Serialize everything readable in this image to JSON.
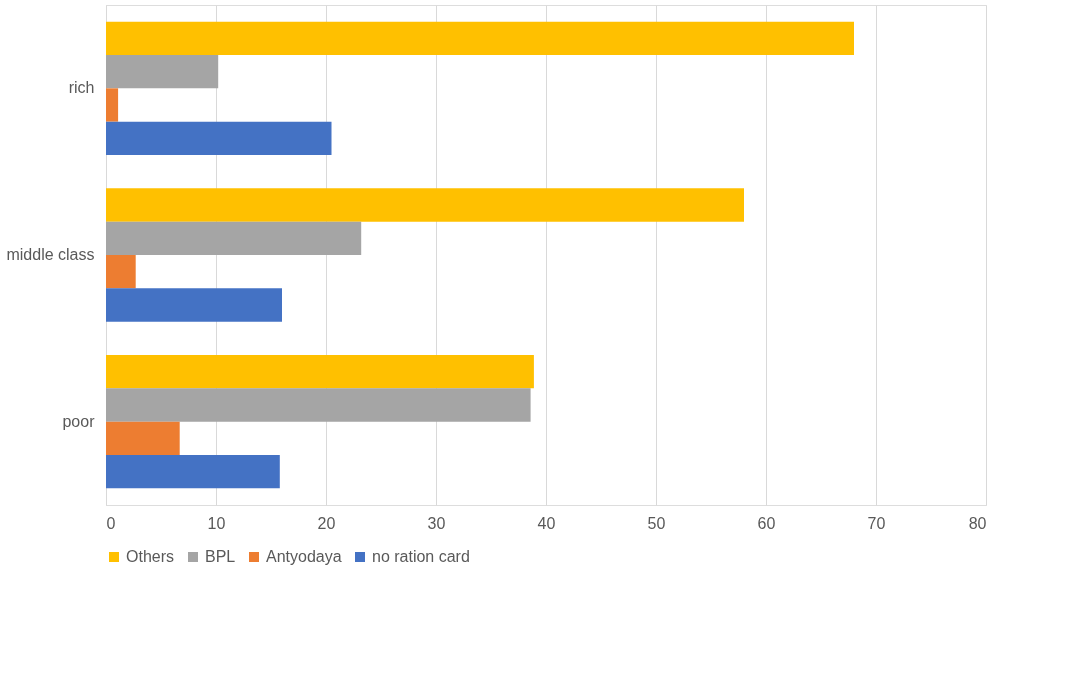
{
  "chart_data": {
    "type": "bar",
    "orientation": "horizontal",
    "categories": [
      "rich",
      "middle class",
      "poor"
    ],
    "series": [
      {
        "name": "Others",
        "color": "#ffc000",
        "values": [
          68,
          58,
          38.9
        ]
      },
      {
        "name": "BPL",
        "color": "#a5a5a5",
        "values": [
          10.2,
          23.2,
          38.6
        ]
      },
      {
        "name": "Antyodaya",
        "color": "#ed7d31",
        "values": [
          1.1,
          2.7,
          6.7
        ]
      },
      {
        "name": "no ration card",
        "color": "#4472c4",
        "values": [
          20.5,
          16,
          15.8
        ]
      }
    ],
    "xlim": [
      0,
      80
    ],
    "xticks": [
      0,
      10,
      20,
      30,
      40,
      50,
      60,
      70,
      80
    ],
    "grid": "x",
    "legend": "bottom"
  }
}
